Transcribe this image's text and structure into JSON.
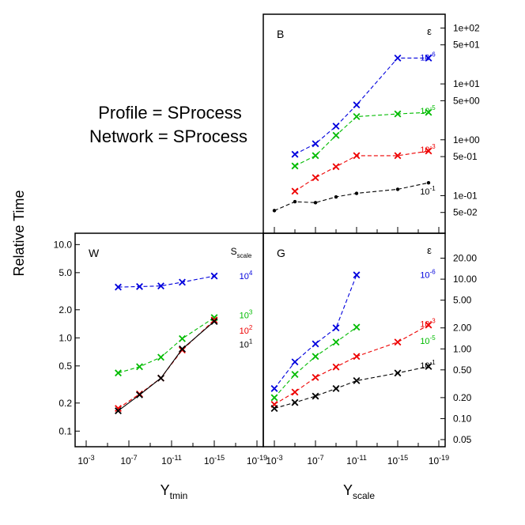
{
  "chart_data": [
    {
      "type": "line",
      "panel": "B",
      "panel_label": "B",
      "legend_title": "ε",
      "y_scale": "log",
      "ylim": [
        0.025,
        150
      ],
      "y_ticks": [
        {
          "value": 100,
          "label": "1e+02"
        },
        {
          "value": 50,
          "label": "5e+01"
        },
        {
          "value": 10,
          "label": "1e+01"
        },
        {
          "value": 5,
          "label": "5e+00"
        },
        {
          "value": 1,
          "label": "1e+00"
        },
        {
          "value": 0.5,
          "label": "5e-01"
        },
        {
          "value": 0.1,
          "label": "1e-01"
        },
        {
          "value": 0.05,
          "label": "5e-02"
        }
      ],
      "x_ticks_exp": [
        -3,
        -7,
        -11,
        -15,
        -19
      ],
      "series": [
        {
          "name": "1e-6",
          "label_base": "10",
          "label_exp": "-6",
          "color": "#0000dd",
          "marker": "x",
          "x": [
            -5,
            -7,
            -9,
            -11,
            -15,
            -18
          ],
          "y": [
            0.55,
            0.85,
            1.75,
            4.2,
            29,
            29
          ],
          "label_at": 30
        },
        {
          "name": "1e-5",
          "label_base": "10",
          "label_exp": "-5",
          "color": "#00bb00",
          "marker": "x",
          "x": [
            -5,
            -7,
            -9,
            -11,
            -15,
            -18
          ],
          "y": [
            0.34,
            0.52,
            1.2,
            2.6,
            2.9,
            3.1
          ],
          "label_at": 3.3
        },
        {
          "name": "1e-3",
          "label_base": "10",
          "label_exp": "-3",
          "color": "#ee0000",
          "marker": "x",
          "x": [
            -5,
            -7,
            -9,
            -11,
            -15,
            -18
          ],
          "y": [
            0.12,
            0.21,
            0.33,
            0.52,
            0.52,
            0.63
          ],
          "label_at": 0.67
        },
        {
          "name": "1e-1",
          "label_base": "10",
          "label_exp": "-1",
          "color": "#000000",
          "marker": "dot",
          "x": [
            -3,
            -5,
            -7,
            -9,
            -11,
            -15,
            -18
          ],
          "y": [
            0.054,
            0.078,
            0.075,
            0.095,
            0.11,
            0.13,
            0.17
          ],
          "label_at": 0.12
        }
      ]
    },
    {
      "type": "line",
      "panel": "W",
      "panel_label": "W",
      "legend_title_base": "S",
      "legend_title_sub": "scale",
      "y_scale": "log",
      "ylim": [
        0.075,
        12
      ],
      "y_ticks": [
        {
          "value": 10,
          "label": "10.0"
        },
        {
          "value": 5,
          "label": "5.0"
        },
        {
          "value": 2,
          "label": "2.0"
        },
        {
          "value": 1,
          "label": "1.0"
        },
        {
          "value": 0.5,
          "label": "0.5"
        },
        {
          "value": 0.2,
          "label": "0.2"
        },
        {
          "value": 0.1,
          "label": "0.1"
        }
      ],
      "x_ticks_exp": [
        -3,
        -7,
        -11,
        -15,
        -19
      ],
      "xlabel_base": "Y",
      "xlabel_sub": "tmin",
      "series": [
        {
          "name": "1e4",
          "label_base": "10",
          "label_exp": "4",
          "color": "#0000dd",
          "marker": "x",
          "style": "dashed",
          "x": [
            -6,
            -8,
            -10,
            -12,
            -15
          ],
          "y": [
            3.5,
            3.55,
            3.6,
            3.95,
            4.6
          ],
          "label_at": 4.6
        },
        {
          "name": "1e3",
          "label_base": "10",
          "label_exp": "3",
          "color": "#00bb00",
          "marker": "x",
          "style": "dashed",
          "x": [
            -6,
            -8,
            -10,
            -12,
            -15
          ],
          "y": [
            0.42,
            0.49,
            0.62,
            0.98,
            1.65
          ],
          "label_at": 1.75
        },
        {
          "name": "1e2",
          "label_base": "10",
          "label_exp": "2",
          "color": "#ee0000",
          "marker": "x",
          "style": "dashed",
          "x": [
            -6,
            -8,
            -10,
            -12,
            -15
          ],
          "y": [
            0.175,
            0.25,
            0.37,
            0.74,
            1.55
          ],
          "label_at": 1.2
        },
        {
          "name": "1e1",
          "label_base": "10",
          "label_exp": "1",
          "color": "#000000",
          "marker": "x",
          "style": "solid",
          "x": [
            -6,
            -8,
            -10,
            -12,
            -15
          ],
          "y": [
            0.165,
            0.245,
            0.37,
            0.76,
            1.5
          ],
          "label_at": 0.85
        }
      ]
    },
    {
      "type": "line",
      "panel": "G",
      "panel_label": "G",
      "legend_title": "ε",
      "y_scale": "log",
      "ylim": [
        0.045,
        40
      ],
      "y_ticks": [
        {
          "value": 20,
          "label": "20.00"
        },
        {
          "value": 10,
          "label": "10.00"
        },
        {
          "value": 5,
          "label": "5.00"
        },
        {
          "value": 2,
          "label": "2.00"
        },
        {
          "value": 1,
          "label": "1.00"
        },
        {
          "value": 0.5,
          "label": "0.50"
        },
        {
          "value": 0.2,
          "label": "0.20"
        },
        {
          "value": 0.1,
          "label": "0.10"
        },
        {
          "value": 0.05,
          "label": "0.05"
        }
      ],
      "x_ticks_exp": [
        -3,
        -7,
        -11,
        -15,
        -19
      ],
      "xlabel_base": "Y",
      "xlabel_sub": "scale",
      "series": [
        {
          "name": "1e-6",
          "label_base": "10",
          "label_exp": "-6",
          "color": "#0000dd",
          "marker": "x",
          "x": [
            -3,
            -5,
            -7,
            -9,
            -11
          ],
          "y": [
            0.27,
            0.65,
            1.18,
            2.0,
            11.5
          ],
          "label_at": 11.5
        },
        {
          "name": "1e-5",
          "label_base": "10",
          "label_exp": "-5",
          "color": "#00bb00",
          "marker": "x",
          "x": [
            -3,
            -5,
            -7,
            -9,
            -11
          ],
          "y": [
            0.2,
            0.43,
            0.78,
            1.25,
            2.05
          ],
          "label_at": 1.3
        },
        {
          "name": "1e-3",
          "label_base": "10",
          "label_exp": "-3",
          "color": "#ee0000",
          "marker": "x",
          "x": [
            -3,
            -5,
            -7,
            -9,
            -11,
            -15,
            -18
          ],
          "y": [
            0.16,
            0.24,
            0.39,
            0.55,
            0.78,
            1.25,
            2.2
          ],
          "label_at": 2.3
        },
        {
          "name": "1e-1",
          "label_base": "10",
          "label_exp": "-1",
          "color": "#000000",
          "marker": "x",
          "x": [
            -3,
            -5,
            -7,
            -9,
            -11,
            -15,
            -18
          ],
          "y": [
            0.14,
            0.17,
            0.21,
            0.27,
            0.35,
            0.45,
            0.56
          ],
          "label_at": 0.58
        }
      ]
    }
  ],
  "annotations": {
    "profile_line": "Profile = SProcess",
    "network_line": "Network = SProcess",
    "ylabel": "Relative Time"
  }
}
